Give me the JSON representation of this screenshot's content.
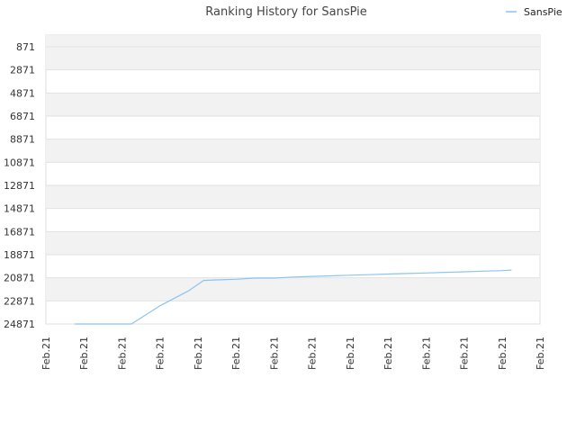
{
  "chart_data": {
    "type": "line",
    "title": "Ranking History for SansPie",
    "xlabel": "",
    "ylabel": "",
    "y_inverted": true,
    "ylim": [
      871,
      24871
    ],
    "y_ticks": [
      871,
      2871,
      4871,
      6871,
      8871,
      10871,
      12871,
      14871,
      16871,
      18871,
      20871,
      22871,
      24871
    ],
    "x_tick_labels": [
      "Feb.21",
      "Feb.21",
      "Feb.21",
      "Feb.21",
      "Feb.21",
      "Feb.21",
      "Feb.21",
      "Feb.21",
      "Feb.21",
      "Feb.21",
      "Feb.21",
      "Feb.21",
      "Feb.21",
      "Feb.21"
    ],
    "grid": true,
    "legend_position": "top-right",
    "series": [
      {
        "name": "SansPie",
        "color": "#8cc4f0",
        "points": [
          [
            0.75,
            24871
          ],
          [
            1.5,
            24871
          ],
          [
            2.25,
            24871
          ],
          [
            3.0,
            23300
          ],
          [
            3.75,
            22000
          ],
          [
            4.15,
            21100
          ],
          [
            4.5,
            21050
          ],
          [
            5.0,
            21000
          ],
          [
            5.5,
            20900
          ],
          [
            6.0,
            20900
          ],
          [
            6.5,
            20800
          ],
          [
            7.0,
            20750
          ],
          [
            7.5,
            20700
          ],
          [
            8.0,
            20650
          ],
          [
            8.5,
            20600
          ],
          [
            9.0,
            20550
          ],
          [
            9.5,
            20500
          ],
          [
            10.0,
            20450
          ],
          [
            10.5,
            20400
          ],
          [
            11.0,
            20350
          ],
          [
            11.5,
            20300
          ],
          [
            12.0,
            20250
          ],
          [
            12.25,
            20200
          ]
        ]
      }
    ]
  }
}
